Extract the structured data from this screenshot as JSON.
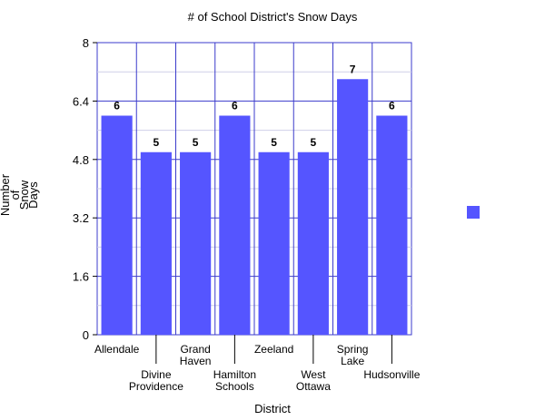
{
  "chart_data": {
    "type": "bar",
    "title": "# of School District's Snow Days",
    "xlabel": "District",
    "ylabel": [
      "Number",
      "of",
      "Snow",
      "Days"
    ],
    "categories": [
      [
        "Allendale"
      ],
      [
        "Divine",
        "Providence"
      ],
      [
        "Grand",
        "Haven"
      ],
      [
        "Hamilton",
        "Schools"
      ],
      [
        "Zeeland"
      ],
      [
        "West",
        "Ottawa"
      ],
      [
        "Spring",
        "Lake"
      ],
      [
        "Hudsonville"
      ]
    ],
    "values": [
      6,
      5,
      5,
      6,
      5,
      5,
      7,
      6
    ],
    "ylim": [
      0,
      8
    ],
    "yticks": [
      "0",
      "1.6",
      "3.2",
      "4.8",
      "6.4",
      "8"
    ],
    "grid": true,
    "legend_placement": "right",
    "colors": {
      "bar": "#5555ff",
      "grid_major": "#3b3bcc",
      "grid_minor": "#cfcfe8"
    }
  }
}
